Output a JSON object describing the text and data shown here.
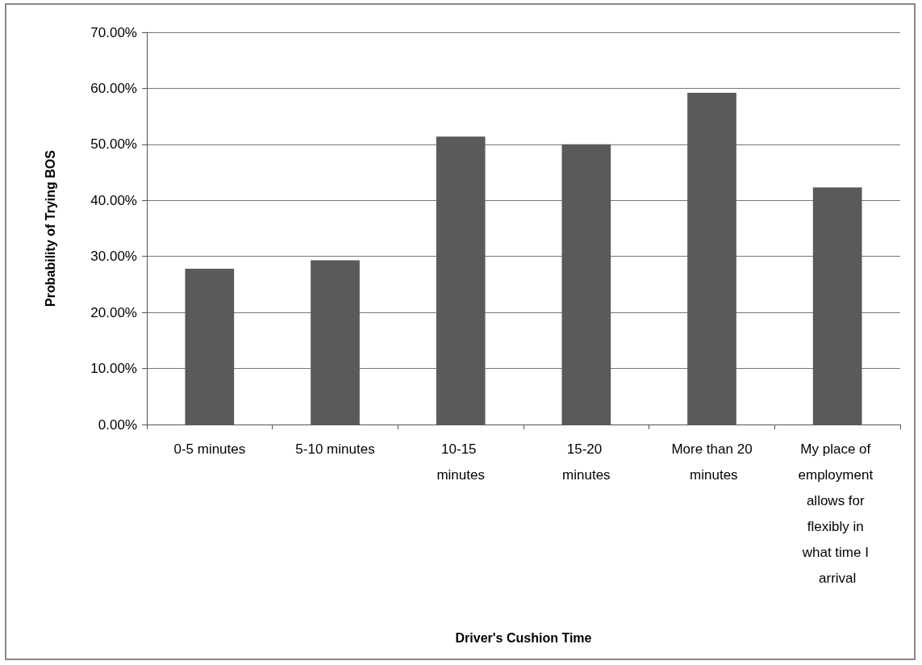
{
  "chart_data": {
    "type": "bar",
    "categories": [
      "0-5 minutes",
      "5-10 minutes",
      "10-15 minutes",
      "15-20 minutes",
      "More than 20 minutes",
      "My place of employment allows for flexibly in what time I arrival"
    ],
    "values": [
      27.8,
      29.3,
      51.4,
      50.0,
      59.2,
      42.3
    ],
    "color": "#5a5a5a",
    "xlabel": "Driver's Cushion Time",
    "ylabel": "Probability of Trying BOS",
    "ylim": [
      0,
      70
    ],
    "yticks": [
      {
        "value": 0,
        "label": "0.00%"
      },
      {
        "value": 10,
        "label": "10.00%"
      },
      {
        "value": 20,
        "label": "20.00%"
      },
      {
        "value": 30,
        "label": "30.00%"
      },
      {
        "value": 40,
        "label": "40.00%"
      },
      {
        "value": 50,
        "label": "50.00%"
      },
      {
        "value": 60,
        "label": "60.00%"
      },
      {
        "value": 70,
        "label": "70.00%"
      }
    ],
    "grid": "y"
  }
}
